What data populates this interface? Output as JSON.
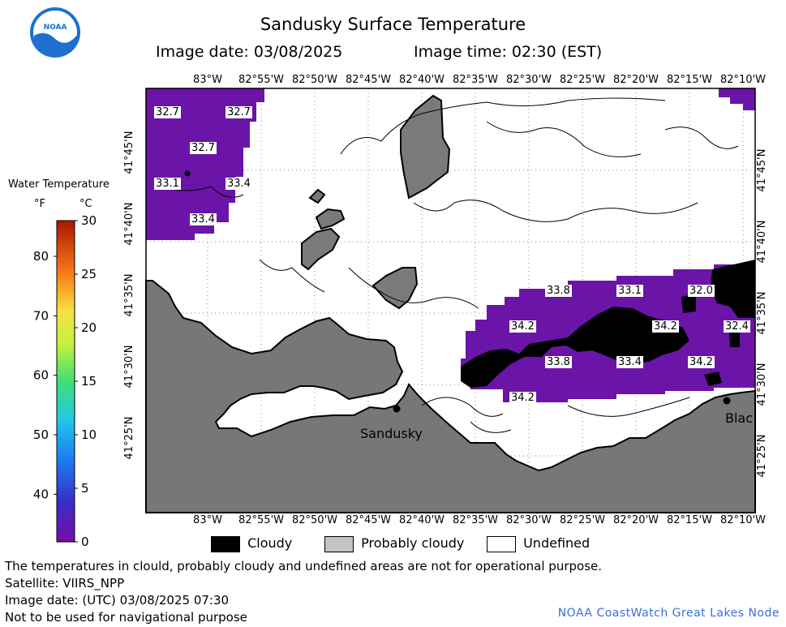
{
  "header": {
    "title": "Sandusky Surface Temperature",
    "image_date": "Image date: 03/08/2025",
    "image_time": "Image time: 02:30 (EST)"
  },
  "logo": {
    "text": "NOAA"
  },
  "colorbar": {
    "title": "Water Temperature",
    "unit_f": "°F",
    "unit_c": "°C",
    "f_ticks": [
      "80",
      "70",
      "60",
      "50",
      "40"
    ],
    "c_ticks": [
      "30",
      "25",
      "20",
      "15",
      "10",
      "5",
      "0"
    ]
  },
  "axes": {
    "top_lon": [
      "83°W",
      "82°55'W",
      "82°50'W",
      "82°45'W",
      "82°40'W",
      "82°35'W",
      "82°30'W",
      "82°25'W",
      "82°20'W",
      "82°15'W",
      "82°10'W"
    ],
    "bottom_lon": [
      "83°W",
      "82°55'W",
      "82°50'W",
      "82°45'W",
      "82°40'W",
      "82°35'W",
      "82°30'W",
      "82°25'W",
      "82°20'W",
      "82°15'W",
      "82°10'W"
    ],
    "left_lat": [
      "41°45'N",
      "41°40'N",
      "41°35'N",
      "41°30'N",
      "41°25'N"
    ],
    "right_lat": [
      "41°45'N",
      "41°40'N",
      "41°35'N",
      "41°30'N",
      "41°25'N"
    ]
  },
  "temp_labels": [
    {
      "value": "32.7",
      "id": "a"
    },
    {
      "value": "32.7",
      "id": "b"
    },
    {
      "value": "32.7",
      "id": "c"
    },
    {
      "value": "33.1",
      "id": "d"
    },
    {
      "value": "33.4",
      "id": "e"
    },
    {
      "value": "33.4",
      "id": "f"
    },
    {
      "value": "33.8",
      "id": "g"
    },
    {
      "value": "33.1",
      "id": "h"
    },
    {
      "value": "32.0",
      "id": "i"
    },
    {
      "value": "34.2",
      "id": "j"
    },
    {
      "value": "34.2",
      "id": "k"
    },
    {
      "value": "32.4",
      "id": "l"
    },
    {
      "value": "33.8",
      "id": "m"
    },
    {
      "value": "33.4",
      "id": "n"
    },
    {
      "value": "34.2",
      "id": "o"
    },
    {
      "value": "34.2",
      "id": "p"
    }
  ],
  "places": {
    "sandusky": "Sandusky",
    "east": "Blac"
  },
  "legend": {
    "cloudy": "Cloudy",
    "probably_cloudy": "Probably cloudy",
    "undefined": "Undefined"
  },
  "footer": {
    "line1": "The temperatures in clould, probably cloudy and undefined areas are not for operational purpose.",
    "line2": "Satellite: VIIRS_NPP",
    "line3": "Image date: (UTC) 03/08/2025  07:30",
    "line4": "Not to be used for navigational purpose",
    "credit": "NOAA CoastWatch Great Lakes Node"
  },
  "colors": {
    "water_purple": "#6a14a8",
    "cloudy": "#000000",
    "probably_cloudy": "#7a7a7a",
    "land": "#777777",
    "undefined": "#ffffff"
  }
}
